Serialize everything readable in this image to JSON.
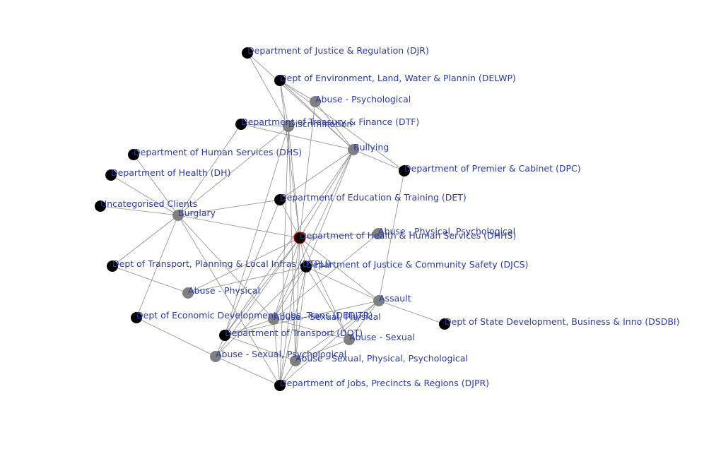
{
  "colors": {
    "department": "#000000",
    "category": "#808080",
    "highlight_border": "#e00000",
    "edge": "#8c8c8c",
    "label": "#2a3aa8"
  },
  "nodes": [
    {
      "id": "djr",
      "label": "Department of Justice & Regulation (DJR)",
      "kind": "department"
    },
    {
      "id": "delwp",
      "label": "Dept of Environment, Land, Water & Plannin (DELWP)",
      "kind": "department"
    },
    {
      "id": "psych",
      "label": "Abuse - Psychological",
      "kind": "category"
    },
    {
      "id": "dtf",
      "label": "Department of Treasury & Finance (DTF)",
      "kind": "department"
    },
    {
      "id": "discrim",
      "label": "Discrimination",
      "kind": "category"
    },
    {
      "id": "bullying",
      "label": "Bullying",
      "kind": "category"
    },
    {
      "id": "dhs",
      "label": "Department of Human Services (DHS)",
      "kind": "department"
    },
    {
      "id": "dpc",
      "label": "Department of Premier & Cabinet (DPC)",
      "kind": "department"
    },
    {
      "id": "dh",
      "label": "Department of Health (DH)",
      "kind": "department"
    },
    {
      "id": "det",
      "label": "Department of Education & Training (DET)",
      "kind": "department"
    },
    {
      "id": "uncat",
      "label": "Uncategorised Clients",
      "kind": "department"
    },
    {
      "id": "burglary",
      "label": "Burglary",
      "kind": "category"
    },
    {
      "id": "physpsych",
      "label": "Abuse - Physical, Psychological",
      "kind": "category"
    },
    {
      "id": "dhhs",
      "label": "Department of Health & Human Services (DHHS)",
      "kind": "department",
      "highlight": true
    },
    {
      "id": "dtpli",
      "label": "Dept of Transport, Planning & Local Infras (DTPLI)",
      "kind": "department"
    },
    {
      "id": "djcs",
      "label": "Department of Justice & Community Safety (DJCS)",
      "kind": "department"
    },
    {
      "id": "phys",
      "label": "Abuse - Physical",
      "kind": "category"
    },
    {
      "id": "assault",
      "label": "Assault",
      "kind": "category"
    },
    {
      "id": "dedjtr",
      "label": "Dept of Economic Development, Jobs, Trans (DEDJTR)",
      "kind": "department"
    },
    {
      "id": "sexphys",
      "label": "Abuse - Sexual, Physical",
      "kind": "category"
    },
    {
      "id": "dsdbi",
      "label": "Dept of State Development, Business & Inno (DSDBI)",
      "kind": "department"
    },
    {
      "id": "dot",
      "label": "Department of Transport (DOT)",
      "kind": "department"
    },
    {
      "id": "sexual",
      "label": "Abuse - Sexual",
      "kind": "category"
    },
    {
      "id": "sexpsych",
      "label": "Abuse - Sexual, Psychological",
      "kind": "category"
    },
    {
      "id": "sexphyspsych",
      "label": "Abuse - Sexual, Physical, Psychological",
      "kind": "category"
    },
    {
      "id": "djpr",
      "label": "Department of Jobs, Precincts & Regions (DJPR)",
      "kind": "department"
    }
  ],
  "edges": [
    [
      "djr",
      "discrim"
    ],
    [
      "djr",
      "bullying"
    ],
    [
      "delwp",
      "psych"
    ],
    [
      "delwp",
      "discrim"
    ],
    [
      "delwp",
      "bullying"
    ],
    [
      "delwp",
      "dhhs"
    ],
    [
      "delwp",
      "dpc"
    ],
    [
      "psych",
      "bullying"
    ],
    [
      "psych",
      "dhhs"
    ],
    [
      "dtf",
      "discrim"
    ],
    [
      "dtf",
      "bullying"
    ],
    [
      "dtf",
      "burglary"
    ],
    [
      "discrim",
      "burglary"
    ],
    [
      "discrim",
      "dhhs"
    ],
    [
      "discrim",
      "dot"
    ],
    [
      "discrim",
      "djpr"
    ],
    [
      "discrim",
      "sexphyspsych"
    ],
    [
      "bullying",
      "dpc"
    ],
    [
      "bullying",
      "det"
    ],
    [
      "bullying",
      "dhhs"
    ],
    [
      "bullying",
      "djcs"
    ],
    [
      "bullying",
      "dot"
    ],
    [
      "bullying",
      "sexphys"
    ],
    [
      "dpc",
      "assault"
    ],
    [
      "dhs",
      "burglary"
    ],
    [
      "dh",
      "burglary"
    ],
    [
      "uncat",
      "burglary"
    ],
    [
      "burglary",
      "det"
    ],
    [
      "burglary",
      "dhhs"
    ],
    [
      "burglary",
      "dtpli"
    ],
    [
      "burglary",
      "dedjtr"
    ],
    [
      "burglary",
      "djpr"
    ],
    [
      "burglary",
      "sexphys"
    ],
    [
      "det",
      "dhhs"
    ],
    [
      "det",
      "dot"
    ],
    [
      "dhhs",
      "physpsych"
    ],
    [
      "dhhs",
      "djcs"
    ],
    [
      "dhhs",
      "phys"
    ],
    [
      "dhhs",
      "assault"
    ],
    [
      "dhhs",
      "sexphys"
    ],
    [
      "dhhs",
      "sexual"
    ],
    [
      "dhhs",
      "dot"
    ],
    [
      "dhhs",
      "sexpsych"
    ],
    [
      "dhhs",
      "sexphyspsych"
    ],
    [
      "dhhs",
      "djpr"
    ],
    [
      "physpsych",
      "sexphys"
    ],
    [
      "dtpli",
      "phys"
    ],
    [
      "djcs",
      "phys"
    ],
    [
      "djcs",
      "assault"
    ],
    [
      "djcs",
      "sexual"
    ],
    [
      "djcs",
      "sexphys"
    ],
    [
      "djcs",
      "sexpsych"
    ],
    [
      "djcs",
      "sexphyspsych"
    ],
    [
      "djcs",
      "djpr"
    ],
    [
      "assault",
      "dsdbi"
    ],
    [
      "assault",
      "dot"
    ],
    [
      "assault",
      "sexual"
    ],
    [
      "assault",
      "sexphyspsych"
    ],
    [
      "assault",
      "djpr"
    ],
    [
      "dedjtr",
      "sexpsych"
    ],
    [
      "dot",
      "sexphys"
    ],
    [
      "dot",
      "sexpsych"
    ],
    [
      "dot",
      "sexphyspsych"
    ],
    [
      "sexphys",
      "sexual"
    ],
    [
      "sexual",
      "sexphyspsych"
    ],
    [
      "sexpsych",
      "djpr"
    ],
    [
      "sexphyspsych",
      "djpr"
    ],
    [
      "sexphys",
      "djpr"
    ]
  ]
}
